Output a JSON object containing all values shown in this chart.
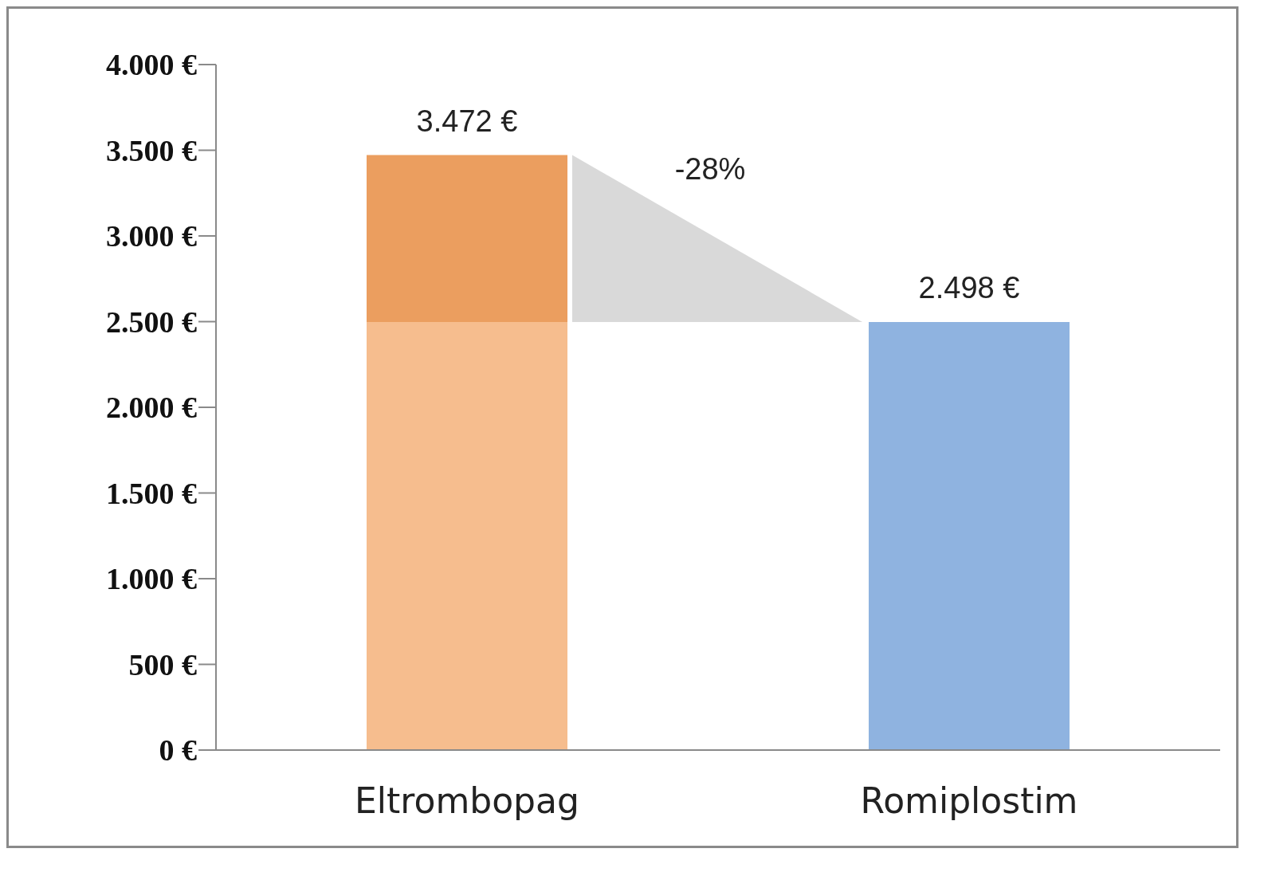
{
  "chart_data": {
    "type": "bar",
    "stacked": true,
    "categories": [
      "Eltrombopag",
      "Romiplostim"
    ],
    "series": [
      {
        "colors": [
          "#f6bd8e",
          "#8fb3e0"
        ],
        "values": [
          2498,
          2498
        ]
      },
      {
        "color": "#eb9e5f",
        "values": [
          974,
          null
        ]
      }
    ],
    "totals": [
      "3.472 €",
      "2.498 €"
    ],
    "annotations": [
      "-28%"
    ],
    "ylim": [
      0,
      4000
    ],
    "yticks": [
      {
        "value": 0,
        "label": "0 €"
      },
      {
        "value": 500,
        "label": "500 €"
      },
      {
        "value": 1000,
        "label": "1.000 €"
      },
      {
        "value": 1500,
        "label": "1.500 €"
      },
      {
        "value": 2000,
        "label": "2.000 €"
      },
      {
        "value": 2500,
        "label": "2.500 €"
      },
      {
        "value": 3000,
        "label": "3.000 €"
      },
      {
        "value": 3500,
        "label": "3.500 €"
      },
      {
        "value": 4000,
        "label": "4.000 €"
      }
    ],
    "grid": false,
    "legend": false
  }
}
